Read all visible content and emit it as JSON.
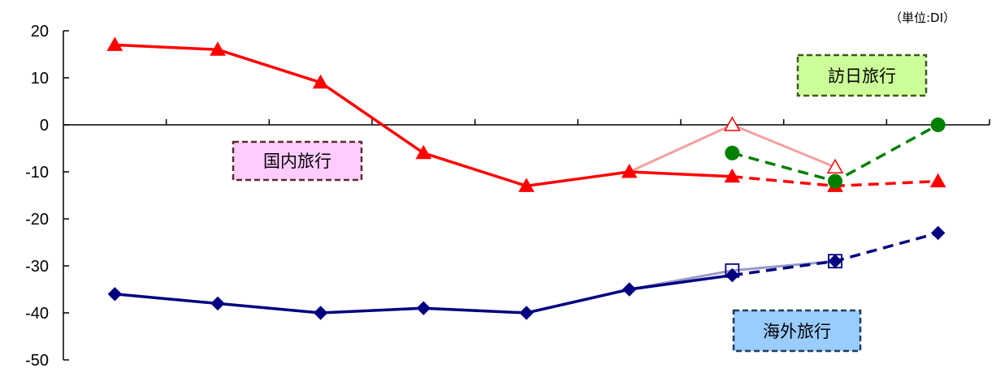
{
  "chart_data": {
    "type": "line",
    "unit_label": "（単位:DI）",
    "ylim": [
      -50,
      20
    ],
    "y_ticks": [
      20,
      10,
      0,
      -10,
      -20,
      -30,
      -40,
      -50
    ],
    "x_count": 9,
    "grid": false,
    "series": [
      {
        "name": "国内旅行",
        "color": "#ff0000",
        "marker": "triangle",
        "actual": [
          [
            0,
            17
          ],
          [
            1,
            16
          ],
          [
            2,
            9
          ],
          [
            3,
            -6
          ],
          [
            4,
            -13
          ],
          [
            5,
            -10
          ],
          [
            6,
            -11
          ]
        ],
        "forecast": [
          [
            6,
            -11
          ],
          [
            7,
            -13
          ],
          [
            8,
            -12
          ]
        ],
        "previous_forecast": [
          [
            5,
            -10
          ],
          [
            6,
            0
          ],
          [
            7,
            -9
          ]
        ]
      },
      {
        "name": "海外旅行",
        "color": "#000080",
        "marker": "diamond",
        "actual": [
          [
            0,
            -36
          ],
          [
            1,
            -38
          ],
          [
            2,
            -40
          ],
          [
            3,
            -39
          ],
          [
            4,
            -40
          ],
          [
            5,
            -35
          ],
          [
            6,
            -32
          ]
        ],
        "forecast": [
          [
            6,
            -32
          ],
          [
            7,
            -29
          ],
          [
            8,
            -23
          ]
        ],
        "previous_forecast": [
          [
            5,
            -35
          ],
          [
            6,
            -31
          ],
          [
            7,
            -29
          ]
        ]
      },
      {
        "name": "訪日旅行",
        "color": "#008000",
        "marker": "circle",
        "actual": [],
        "forecast": [
          [
            6,
            -6
          ],
          [
            7,
            -12
          ],
          [
            8,
            0
          ]
        ],
        "previous_forecast": []
      }
    ],
    "labels": [
      {
        "text": "国内旅行",
        "fill": "#ffccff",
        "border": "#5a2a2a"
      },
      {
        "text": "訪日旅行",
        "fill": "#ccff99",
        "border": "#3d5a1e"
      },
      {
        "text": "海外旅行",
        "fill": "#99ccff",
        "border": "#1f3a5a"
      }
    ]
  }
}
